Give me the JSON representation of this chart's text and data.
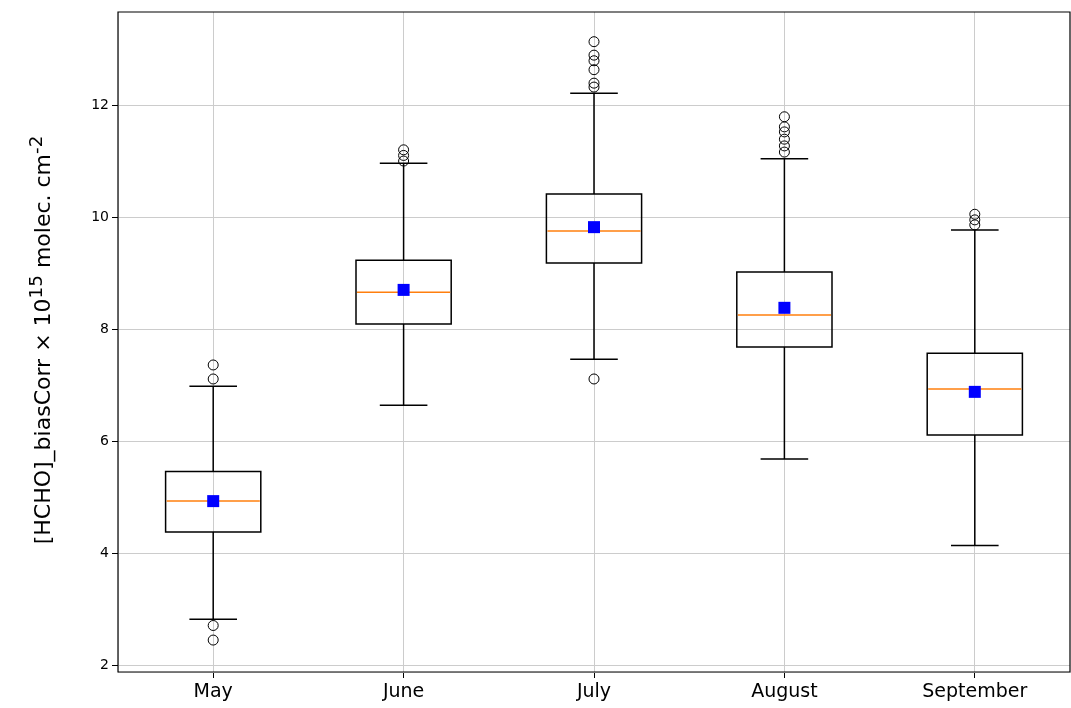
{
  "chart_data": {
    "type": "box",
    "ylabel": "[HCHO]_biasCorr × 10$^{15}$ molec. cm$^{-2}$",
    "categories": [
      "May",
      "June",
      "July",
      "August",
      "September"
    ],
    "boxes": [
      {
        "low": 2.82,
        "q1": 4.38,
        "median": 4.93,
        "q3": 5.46,
        "high": 6.98,
        "mean": 4.93,
        "outliers": [
          7.36,
          7.11,
          2.71,
          2.45
        ]
      },
      {
        "low": 6.64,
        "q1": 8.09,
        "median": 8.66,
        "q3": 9.23,
        "high": 10.96,
        "mean": 8.7,
        "outliers": [
          11.0,
          11.1,
          11.2
        ]
      },
      {
        "low": 7.46,
        "q1": 9.18,
        "median": 9.75,
        "q3": 10.41,
        "high": 12.21,
        "mean": 9.82,
        "outliers": [
          7.11,
          12.32,
          12.39,
          12.63,
          12.79,
          12.89,
          13.13
        ]
      },
      {
        "low": 5.68,
        "q1": 7.68,
        "median": 8.25,
        "q3": 9.02,
        "high": 11.04,
        "mean": 8.38,
        "outliers": [
          11.16,
          11.27,
          11.39,
          11.52,
          11.61,
          11.79
        ]
      },
      {
        "low": 4.14,
        "q1": 6.11,
        "median": 6.93,
        "q3": 7.57,
        "high": 9.77,
        "mean": 6.88,
        "outliers": [
          9.86,
          9.95,
          10.05
        ]
      }
    ],
    "ylim": [
      1.88,
      13.66
    ],
    "yticks": [
      2,
      4,
      6,
      8,
      10,
      12
    ],
    "grid": true
  }
}
